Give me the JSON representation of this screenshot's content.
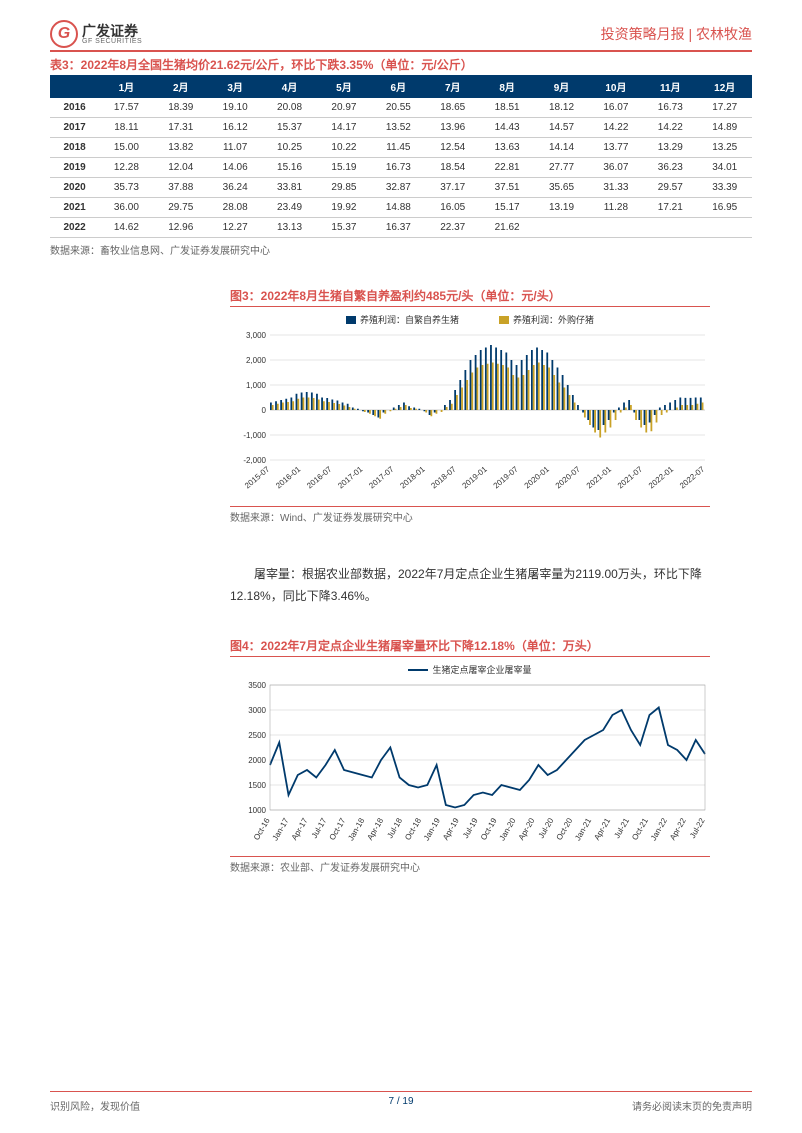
{
  "header": {
    "logo_cn": "广发证券",
    "logo_en": "GF SECURITIES",
    "logo_letter": "G",
    "right": "投资策略月报 | 农林牧渔"
  },
  "table3": {
    "title": "表3：2022年8月全国生猪均价21.62元/公斤，环比下跌3.35%（单位：元/公斤）",
    "columns": [
      "",
      "1月",
      "2月",
      "3月",
      "4月",
      "5月",
      "6月",
      "7月",
      "8月",
      "9月",
      "10月",
      "11月",
      "12月"
    ],
    "rows": [
      [
        "2016",
        "17.57",
        "18.39",
        "19.10",
        "20.08",
        "20.97",
        "20.55",
        "18.65",
        "18.51",
        "18.12",
        "16.07",
        "16.73",
        "17.27"
      ],
      [
        "2017",
        "18.11",
        "17.31",
        "16.12",
        "15.37",
        "14.17",
        "13.52",
        "13.96",
        "14.43",
        "14.57",
        "14.22",
        "14.22",
        "14.89"
      ],
      [
        "2018",
        "15.00",
        "13.82",
        "11.07",
        "10.25",
        "10.22",
        "11.45",
        "12.54",
        "13.63",
        "14.14",
        "13.77",
        "13.29",
        "13.25"
      ],
      [
        "2019",
        "12.28",
        "12.04",
        "14.06",
        "15.16",
        "15.19",
        "16.73",
        "18.54",
        "22.81",
        "27.77",
        "36.07",
        "36.23",
        "34.01"
      ],
      [
        "2020",
        "35.73",
        "37.88",
        "36.24",
        "33.81",
        "29.85",
        "32.87",
        "37.17",
        "37.51",
        "35.65",
        "31.33",
        "29.57",
        "33.39"
      ],
      [
        "2021",
        "36.00",
        "29.75",
        "28.08",
        "23.49",
        "19.92",
        "14.88",
        "16.05",
        "15.17",
        "13.19",
        "11.28",
        "17.21",
        "16.95"
      ],
      [
        "2022",
        "14.62",
        "12.96",
        "12.27",
        "13.13",
        "15.37",
        "16.37",
        "22.37",
        "21.62",
        "",
        "",
        "",
        ""
      ]
    ],
    "header_bg": "#003a6c",
    "header_fg": "#ffffff",
    "border_color": "#cccccc",
    "source": "数据来源：畜牧业信息网、广发证券发展研究中心"
  },
  "chart3": {
    "title": "图3：2022年8月生猪自繁自养盈利约485元/头（单位：元/头）",
    "legend": [
      {
        "label": "养殖利润：自繁自养生猪",
        "color": "#003a6c"
      },
      {
        "label": "养殖利润：外购仔猪",
        "color": "#c9a227"
      }
    ],
    "ylim": [
      -2000,
      3000
    ],
    "ytick_step": 1000,
    "x_labels": [
      "2015-07",
      "2016-01",
      "2016-07",
      "2017-01",
      "2017-07",
      "2018-01",
      "2018-07",
      "2019-01",
      "2019-07",
      "2020-01",
      "2020-07",
      "2021-01",
      "2021-07",
      "2022-01",
      "2022-07"
    ],
    "series_a": [
      300,
      350,
      400,
      450,
      500,
      650,
      700,
      720,
      700,
      650,
      500,
      480,
      420,
      380,
      300,
      250,
      100,
      50,
      -50,
      -100,
      -200,
      -300,
      -100,
      0,
      100,
      200,
      300,
      150,
      100,
      50,
      -50,
      -200,
      -100,
      0,
      200,
      400,
      800,
      1200,
      1600,
      2000,
      2200,
      2400,
      2500,
      2600,
      2500,
      2400,
      2300,
      2000,
      1800,
      2000,
      2200,
      2400,
      2500,
      2400,
      2300,
      2000,
      1700,
      1400,
      1000,
      600,
      200,
      -100,
      -400,
      -700,
      -800,
      -600,
      -400,
      -100,
      100,
      300,
      400,
      -100,
      -400,
      -600,
      -500,
      -200,
      100,
      200,
      300,
      400,
      500,
      485,
      485,
      500,
      500
    ],
    "series_b": [
      200,
      250,
      300,
      320,
      350,
      450,
      500,
      500,
      480,
      420,
      350,
      320,
      280,
      240,
      180,
      120,
      50,
      0,
      -80,
      -150,
      -250,
      -350,
      -150,
      -50,
      50,
      120,
      200,
      80,
      50,
      0,
      -100,
      -250,
      -150,
      -80,
      120,
      250,
      600,
      900,
      1200,
      1500,
      1700,
      1800,
      1850,
      1900,
      1850,
      1800,
      1700,
      1400,
      1300,
      1400,
      1600,
      1800,
      1900,
      1800,
      1700,
      1400,
      1100,
      900,
      600,
      300,
      0,
      -300,
      -600,
      -900,
      -1100,
      -900,
      -700,
      -400,
      -100,
      100,
      200,
      -400,
      -700,
      -900,
      -850,
      -500,
      -200,
      -100,
      0,
      100,
      200,
      200,
      200,
      250,
      300
    ],
    "background_color": "#ffffff",
    "grid_color": "#cccccc",
    "source": "数据来源：Wind、广发证券发展研究中心"
  },
  "paragraph": "屠宰量：根据农业部数据，2022年7月定点企业生猪屠宰量为2119.00万头，环比下降12.18%，同比下降3.46%。",
  "chart4": {
    "title": "图4：2022年7月定点企业生猪屠宰量环比下降12.18%（单位：万头）",
    "legend": [
      {
        "label": "生猪定点屠宰企业屠宰量",
        "color": "#003a6c"
      }
    ],
    "ylim": [
      1000,
      3500
    ],
    "ytick_step": 500,
    "x_labels": [
      "Oct-16",
      "Jan-17",
      "Apr-17",
      "Jul-17",
      "Oct-17",
      "Jan-18",
      "Apr-18",
      "Jul-18",
      "Oct-18",
      "Jan-19",
      "Apr-19",
      "Jul-19",
      "Oct-19",
      "Jan-20",
      "Apr-20",
      "Jul-20",
      "Oct-20",
      "Jan-21",
      "Apr-21",
      "Jul-21",
      "Oct-21",
      "Jan-22",
      "Apr-22",
      "Jul-22"
    ],
    "values": [
      1900,
      2350,
      1300,
      1700,
      1800,
      1650,
      1900,
      2200,
      1800,
      1750,
      1700,
      1650,
      2000,
      2250,
      1650,
      1500,
      1450,
      1500,
      1900,
      1100,
      1050,
      1100,
      1300,
      1350,
      1300,
      1500,
      1450,
      1400,
      1600,
      1900,
      1700,
      1800,
      2000,
      2200,
      2400,
      2500,
      2600,
      2900,
      3000,
      2600,
      2300,
      2900,
      3050,
      2300,
      2200,
      2000,
      2400,
      2119
    ],
    "line_color": "#003a6c",
    "background_color": "#ffffff",
    "grid_color": "#cccccc",
    "source": "数据来源：农业部、广发证券发展研究中心"
  },
  "footer": {
    "left": "识别风险，发现价值",
    "right": "请务必阅读末页的免责声明",
    "page": "7 / 19"
  },
  "colors": {
    "accent": "#d9534f",
    "navy": "#003a6c"
  }
}
